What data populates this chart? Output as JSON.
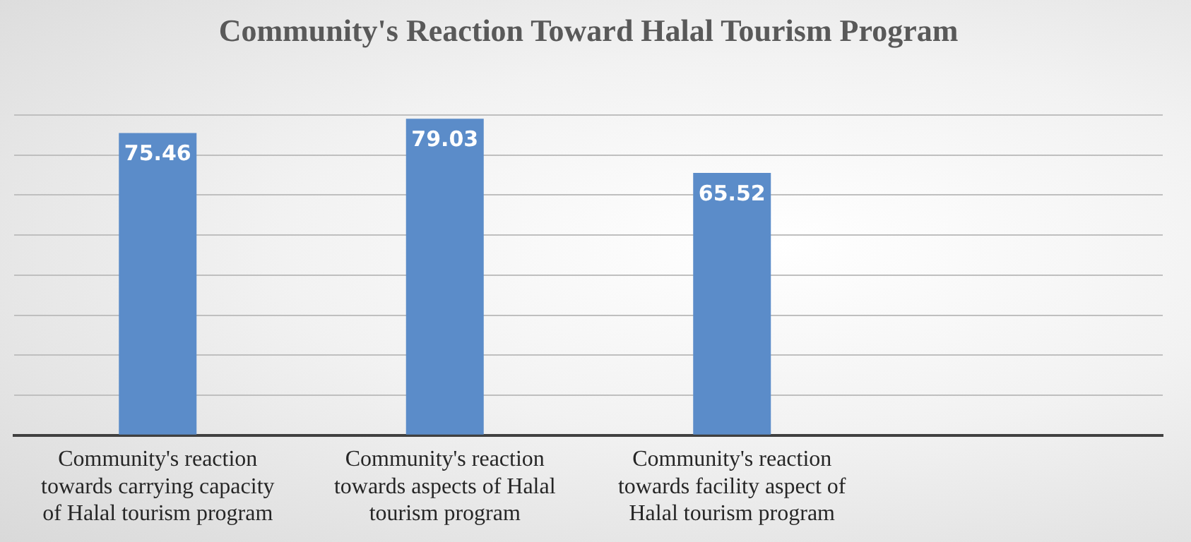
{
  "chart_data": {
    "type": "bar",
    "title": "Community's Reaction Toward Halal Tourism Program",
    "categories": [
      "Community's reaction towards carrying capacity of Halal tourism program",
      "Community's reaction towards aspects of Halal tourism program",
      "Community's reaction towards facility aspect of Halal tourism program",
      null
    ],
    "values": [
      75.46,
      79.03,
      65.52,
      null
    ],
    "color": "#5b8cc9",
    "ylim": [
      0,
      80
    ],
    "yticks": [
      {
        "value": 0,
        "label": null
      },
      {
        "value": 10,
        "label": null
      },
      {
        "value": 20,
        "label": null
      },
      {
        "value": 30,
        "label": null
      },
      {
        "value": 40,
        "label": null
      },
      {
        "value": 50,
        "label": null
      },
      {
        "value": 60,
        "label": null
      },
      {
        "value": 70,
        "label": null
      },
      {
        "value": 80,
        "label": null
      }
    ],
    "grid": "y",
    "tick_labels": "x",
    "data_labels": true,
    "legend": false
  }
}
